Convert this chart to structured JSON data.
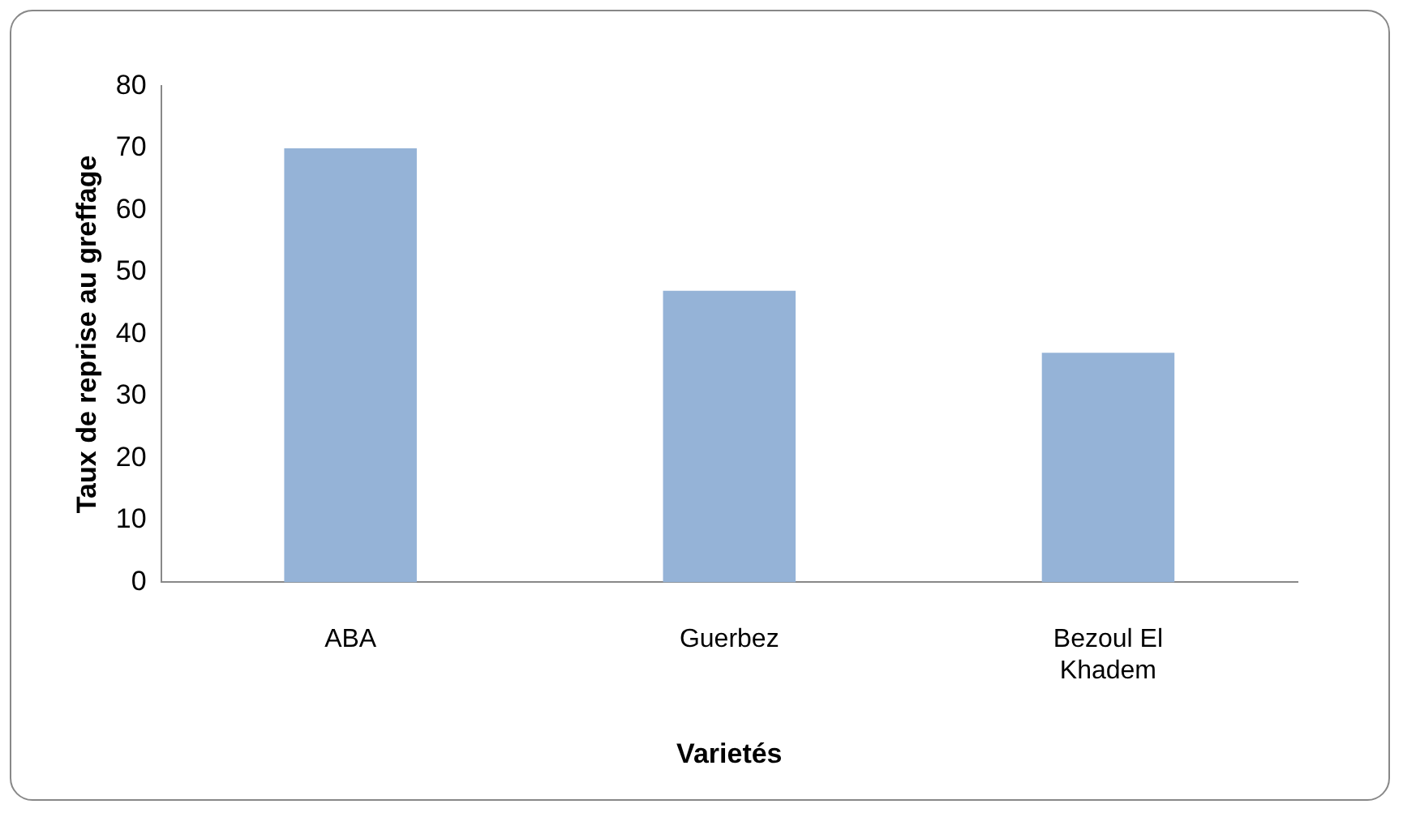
{
  "chart_data": {
    "type": "bar",
    "xlabel": "Varietés",
    "ylabel": "Taux de reprise au greffage",
    "categories": [
      "ABA",
      "Guerbez",
      "Bezoul El Khadem"
    ],
    "values": [
      70,
      47,
      37
    ],
    "color": "#95b3d7",
    "ylim": [
      0,
      80
    ],
    "yticks": [
      0,
      10,
      20,
      30,
      40,
      50,
      60,
      70,
      80
    ],
    "grid": false,
    "legend": false
  }
}
